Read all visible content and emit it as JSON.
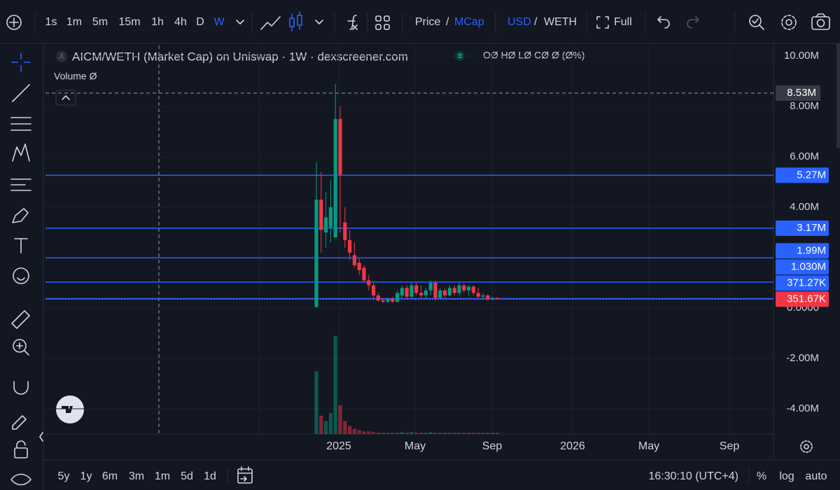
{
  "toolbar": {
    "intervals": [
      "1s",
      "1m",
      "5m",
      "15m",
      "1h",
      "4h",
      "D",
      "W"
    ],
    "price": "Price",
    "price_sep": "/",
    "mcap": "MCap",
    "usd": "USD",
    "usd_sep": "/",
    "weth": "WETH",
    "full": "Full"
  },
  "legend": {
    "logo": "A",
    "title": "AICM/WETH (Market Cap) on Uniswap · 1W · dexscreener.com",
    "ohlc": "OØ HØ LØ CØ Ø (Ø%)",
    "volume": "Volume Ø"
  },
  "chart_data": {
    "type": "candlestick",
    "ylim": [
      -5.0,
      10.42
    ],
    "yticks": [
      {
        "value": 10,
        "label": "10.00M"
      },
      {
        "value": 8,
        "label": "8.00M"
      },
      {
        "value": 6,
        "label": "6.00M"
      },
      {
        "value": 4,
        "label": "4.00M"
      },
      {
        "value": 0,
        "label": "0.0000"
      },
      {
        "value": -2,
        "label": "-2.00M"
      },
      {
        "value": -4,
        "label": "-4.00M"
      }
    ],
    "xticks": [
      "2025",
      "May",
      "Sep",
      "2026",
      "May",
      "Sep"
    ],
    "up_color": "#089981",
    "down_color": "#f23645",
    "open": [
      0.05,
      4.3,
      3.0,
      3.2,
      2.8,
      7.5,
      3.4,
      2.7,
      2.1,
      1.8,
      1.6,
      1.1,
      0.9,
      0.5,
      0.3,
      0.25,
      0.35,
      0.25,
      0.5,
      0.8,
      0.45,
      0.9,
      0.6,
      0.5,
      0.7,
      1.0,
      0.4,
      0.7,
      0.5,
      0.8,
      0.6,
      0.9,
      0.7,
      0.85,
      0.6,
      0.45,
      0.5,
      0.35,
      0.4
    ],
    "high": [
      5.8,
      5.4,
      4.6,
      5.1,
      8.9,
      8.0,
      4.0,
      3.1,
      2.6,
      2.0,
      1.7,
      1.3,
      1.0,
      0.6,
      0.4,
      0.4,
      0.45,
      0.7,
      0.9,
      0.9,
      1.0,
      1.0,
      0.9,
      0.8,
      1.1,
      1.1,
      0.8,
      0.8,
      0.9,
      0.9,
      1.0,
      0.95,
      0.9,
      0.9,
      0.8,
      0.6,
      0.55,
      0.45,
      0.42
    ],
    "low": [
      0.0,
      2.2,
      2.4,
      2.6,
      2.8,
      3.0,
      2.4,
      1.9,
      1.6,
      1.3,
      1.0,
      0.7,
      0.4,
      0.25,
      0.2,
      0.2,
      0.2,
      0.2,
      0.4,
      0.4,
      0.4,
      0.5,
      0.4,
      0.35,
      0.5,
      0.3,
      0.35,
      0.4,
      0.45,
      0.5,
      0.5,
      0.6,
      0.5,
      0.5,
      0.4,
      0.35,
      0.3,
      0.3,
      0.33
    ],
    "close": [
      4.3,
      3.1,
      3.6,
      4.0,
      7.5,
      5.3,
      2.7,
      2.2,
      1.7,
      1.5,
      1.1,
      0.9,
      0.5,
      0.3,
      0.25,
      0.35,
      0.25,
      0.6,
      0.8,
      0.45,
      0.9,
      0.6,
      0.5,
      0.7,
      1.0,
      0.4,
      0.7,
      0.5,
      0.8,
      0.6,
      0.9,
      0.7,
      0.85,
      0.6,
      0.45,
      0.5,
      0.35,
      0.4,
      0.35
    ],
    "volume": [
      48,
      14,
      10,
      16,
      75,
      22,
      10,
      6,
      4,
      3,
      2,
      2,
      1.5,
      1,
      1,
      1,
      1,
      1,
      1.5,
      1,
      1.5,
      1,
      1,
      1,
      1.5,
      1,
      1,
      1,
      1,
      1,
      1,
      1,
      1,
      1,
      1,
      1,
      1,
      1,
      1
    ],
    "price_lines": [
      {
        "value": 5.27,
        "label": "5.27M",
        "color": "#2962ff",
        "label_color": "#2962ff"
      },
      {
        "value": 3.17,
        "label": "3.17M",
        "color": "#2962ff",
        "label_color": "#2962ff"
      },
      {
        "value": 1.99,
        "label": "1.99M",
        "color": "#2962ff",
        "label_color": "#2962ff"
      },
      {
        "value": 1.03,
        "label": "1.030M",
        "color": "#2962ff",
        "label_color": "#2962ff"
      },
      {
        "value": 0.37127,
        "label": "371.27K",
        "color": "#2962ff",
        "label_color": "#2962ff"
      },
      {
        "value": 0.35167,
        "label": "351.67K",
        "color": "#7e57c2",
        "label_color": "#f23645"
      }
    ],
    "crosshair": {
      "value": 8.53,
      "label": "8.53M"
    }
  },
  "bottom": {
    "ranges": [
      "5y",
      "1y",
      "6m",
      "3m",
      "1m",
      "5d",
      "1d"
    ],
    "time": "16:30:10 (UTC+4)",
    "percent": "%",
    "log": "log",
    "auto": "auto"
  }
}
